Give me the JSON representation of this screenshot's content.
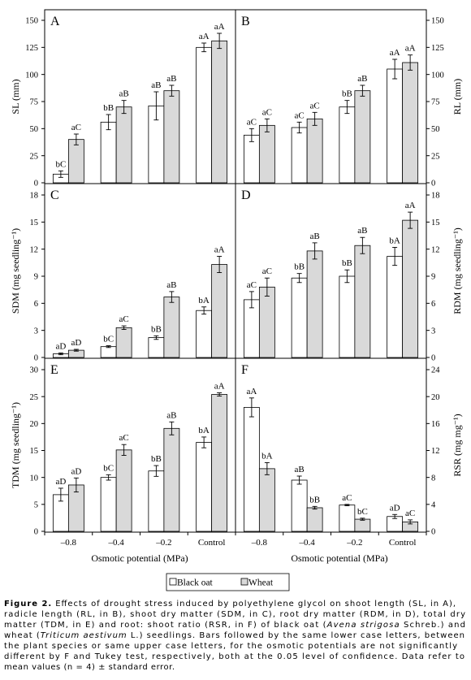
{
  "legend_position": "bottom-center",
  "chart_data": [
    {
      "panel": "A",
      "type": "bar",
      "categories": [
        "–0.8",
        "–0.4",
        "–0.2",
        "Control"
      ],
      "xlabel": "",
      "ylabel": "SL (mm)",
      "ylim": [
        0,
        150
      ],
      "yticks": [
        0,
        25,
        50,
        75,
        100,
        125,
        150
      ],
      "grid": false,
      "series": [
        {
          "name": "Black oat",
          "color": "#ffffff",
          "values": [
            8,
            56,
            71,
            125
          ],
          "errors": [
            3,
            7,
            13,
            4
          ],
          "letters": [
            "bC",
            "bB",
            "aB",
            "aA"
          ]
        },
        {
          "name": "Wheat",
          "color": "#d9d9d9",
          "values": [
            40,
            70,
            85,
            131
          ],
          "errors": [
            5,
            6,
            5,
            7
          ],
          "letters": [
            "aC",
            "aB",
            "aB",
            "aA"
          ]
        }
      ]
    },
    {
      "panel": "B",
      "type": "bar",
      "categories": [
        "–0.8",
        "–0.4",
        "–0.2",
        "Control"
      ],
      "xlabel": "",
      "ylabel": "RL (mm)",
      "ylim": [
        0,
        150
      ],
      "yticks": [
        0,
        25,
        50,
        75,
        100,
        125,
        150
      ],
      "grid": false,
      "series": [
        {
          "name": "Black oat",
          "color": "#ffffff",
          "values": [
            44,
            51,
            70,
            105
          ],
          "errors": [
            6,
            5,
            6,
            9
          ],
          "letters": [
            "aC",
            "aC",
            "bB",
            "aA"
          ]
        },
        {
          "name": "Wheat",
          "color": "#d9d9d9",
          "values": [
            53,
            59,
            85,
            111
          ],
          "errors": [
            6,
            6,
            5,
            7
          ],
          "letters": [
            "aC",
            "aC",
            "aB",
            "aA"
          ]
        }
      ]
    },
    {
      "panel": "C",
      "type": "bar",
      "categories": [
        "–0.8",
        "–0.4",
        "–0.2",
        "Control"
      ],
      "xlabel": "",
      "ylabel": "SDM (mg seedling⁻¹)",
      "ylim": [
        0,
        18
      ],
      "yticks": [
        0,
        3,
        6,
        9,
        12,
        15,
        18
      ],
      "grid": false,
      "series": [
        {
          "name": "Black oat",
          "color": "#ffffff",
          "values": [
            0.4,
            1.2,
            2.2,
            5.2
          ],
          "errors": [
            0.1,
            0.1,
            0.2,
            0.4
          ],
          "letters": [
            "aD",
            "bC",
            "bB",
            "bA"
          ]
        },
        {
          "name": "Wheat",
          "color": "#d9d9d9",
          "values": [
            0.8,
            3.3,
            6.7,
            10.3
          ],
          "errors": [
            0.1,
            0.2,
            0.6,
            0.9
          ],
          "letters": [
            "aD",
            "aC",
            "aB",
            "aA"
          ]
        }
      ]
    },
    {
      "panel": "D",
      "type": "bar",
      "categories": [
        "–0.8",
        "–0.4",
        "–0.2",
        "Control"
      ],
      "xlabel": "",
      "ylabel": "RDM (mg seedling⁻¹)",
      "ylim": [
        0,
        18
      ],
      "yticks": [
        0,
        3,
        6,
        9,
        12,
        15,
        18
      ],
      "grid": false,
      "series": [
        {
          "name": "Black oat",
          "color": "#ffffff",
          "values": [
            6.4,
            8.8,
            9.0,
            11.2
          ],
          "errors": [
            0.9,
            0.5,
            0.7,
            1.0
          ],
          "letters": [
            "aC",
            "bB",
            "bB",
            "bA"
          ]
        },
        {
          "name": "Wheat",
          "color": "#d9d9d9",
          "values": [
            7.8,
            11.8,
            12.4,
            15.2
          ],
          "errors": [
            1.0,
            0.9,
            0.9,
            0.9
          ],
          "letters": [
            "aC",
            "aB",
            "aB",
            "aA"
          ]
        }
      ]
    },
    {
      "panel": "E",
      "type": "bar",
      "categories": [
        "–0.8",
        "–0.4",
        "–0.2",
        "Control"
      ],
      "xlabel": "Osmotic potential (MPa)",
      "ylabel": "TDM (mg seedling⁻¹)",
      "ylim": [
        0,
        30
      ],
      "yticks": [
        0,
        5,
        10,
        15,
        20,
        25,
        30
      ],
      "grid": false,
      "series": [
        {
          "name": "Black oat",
          "color": "#ffffff",
          "values": [
            6.8,
            10.0,
            11.2,
            16.5
          ],
          "errors": [
            1.2,
            0.5,
            1.0,
            1.0
          ],
          "letters": [
            "aD",
            "bC",
            "bB",
            "bA"
          ]
        },
        {
          "name": "Wheat",
          "color": "#d9d9d9",
          "values": [
            8.6,
            15.1,
            19.1,
            25.4
          ],
          "errors": [
            1.3,
            1.0,
            1.2,
            0.3
          ],
          "letters": [
            "aD",
            "aC",
            "aB",
            "aA"
          ]
        }
      ]
    },
    {
      "panel": "F",
      "type": "bar",
      "categories": [
        "–0.8",
        "–0.4",
        "–0.2",
        "Control"
      ],
      "xlabel": "Osmotic potential (MPa)",
      "ylabel": "RSR (mg mg⁻¹)",
      "ylim": [
        0,
        24
      ],
      "yticks": [
        0,
        4,
        8,
        12,
        16,
        20,
        24
      ],
      "grid": false,
      "series": [
        {
          "name": "Black oat",
          "color": "#ffffff",
          "values": [
            18.4,
            7.6,
            3.9,
            2.2
          ],
          "errors": [
            1.4,
            0.6,
            0.1,
            0.3
          ],
          "letters": [
            "aA",
            "aB",
            "aC",
            "aD"
          ]
        },
        {
          "name": "Wheat",
          "color": "#d9d9d9",
          "values": [
            9.3,
            3.5,
            1.8,
            1.4
          ],
          "errors": [
            0.9,
            0.2,
            0.15,
            0.3
          ],
          "letters": [
            "bA",
            "bB",
            "bC",
            "aC"
          ]
        }
      ]
    }
  ],
  "caption": [
    [
      {
        "text": "Figure 2.",
        "style": "bold"
      },
      {
        "text": " Effects of drought stress induced by polyethylene glycol on shoot length (SL, in A),",
        "style": ""
      }
    ],
    [
      {
        "text": "radicle length (RL, in B), shoot dry matter (SDM, in C), root dry matter (RDM, in D), total dry",
        "style": ""
      }
    ],
    [
      {
        "text": "matter (TDM, in E) and root: shoot ratio (RSR, in F) of black oat (",
        "style": ""
      },
      {
        "text": "Avena strigosa",
        "style": "italic"
      },
      {
        "text": " Schreb.) and",
        "style": ""
      }
    ],
    [
      {
        "text": "wheat (",
        "style": ""
      },
      {
        "text": "Triticum aestivum",
        "style": "italic"
      },
      {
        "text": " L.) seedlings. Bars followed by the same lower case letters, between",
        "style": ""
      }
    ],
    [
      {
        "text": "the plant species or same upper case letters, for the osmotic potentials are not significantly",
        "style": ""
      }
    ],
    [
      {
        "text": "different by F and Tukey test, respectively, both at the 0.05 level of confidence. Data refer to",
        "style": ""
      }
    ],
    [
      {
        "text": "mean values (n = 4) ± standard error.",
        "style": ""
      }
    ]
  ]
}
